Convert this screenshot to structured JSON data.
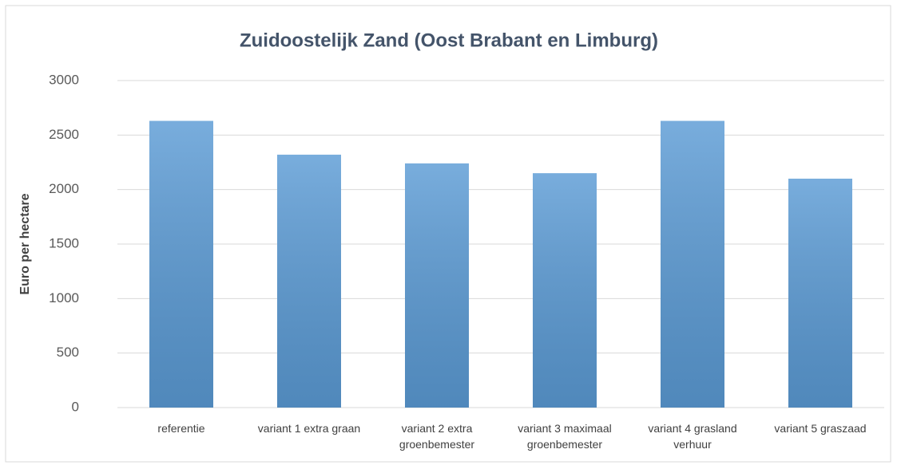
{
  "chart_data": {
    "type": "bar",
    "title": "Zuidoostelijk Zand (Oost Brabant en Limburg)",
    "y_label": "Euro per hectare",
    "categories": [
      "referentie",
      "variant 1 extra graan",
      "variant 2 extra groenbemester",
      "variant 3 maximaal groenbemester",
      "variant 4 grasland verhuur",
      "variant 5 graszaad"
    ],
    "values": [
      2630,
      2320,
      2240,
      2150,
      2630,
      2100
    ],
    "color": "#5b9bd5",
    "ylim": [
      0,
      3000
    ],
    "yticks": [
      0,
      500,
      1000,
      1500,
      2000,
      2500,
      3000
    ],
    "grid": true
  }
}
